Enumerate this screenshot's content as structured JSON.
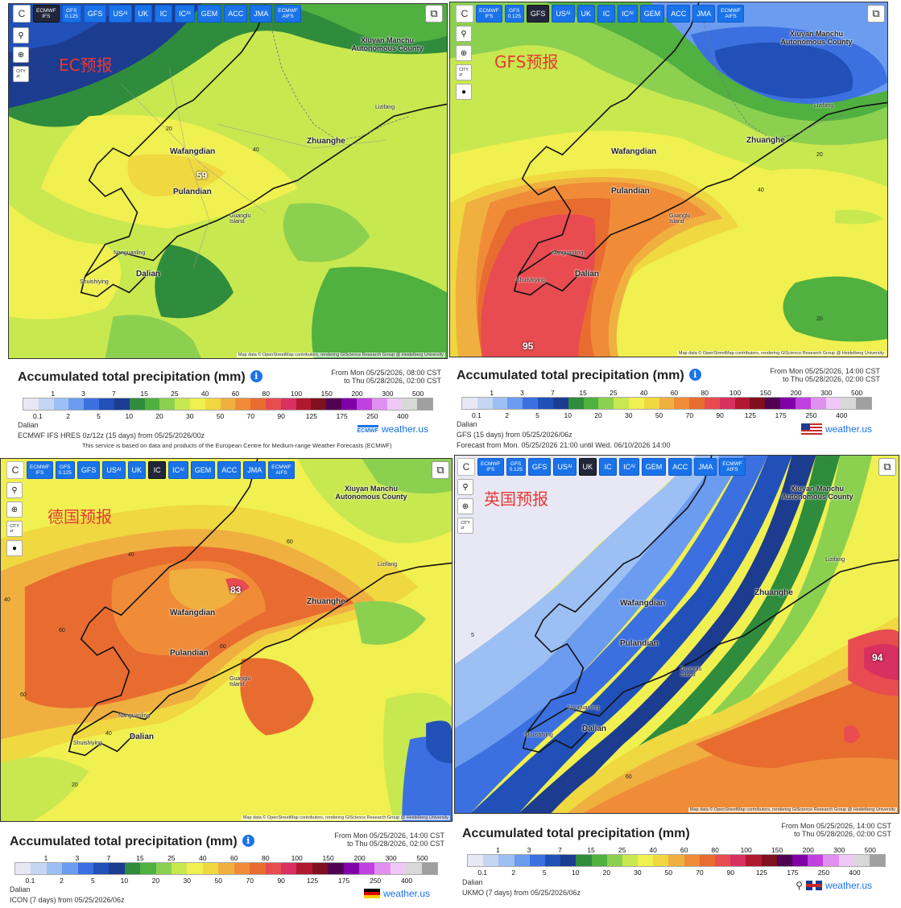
{
  "toolbar": {
    "refresh_label": "C",
    "models": [
      "ECMWF IFS",
      "GFS 0.125",
      "GFS",
      "USAI",
      "UK",
      "IC",
      "ICAI",
      "GEM",
      "ACC",
      "JMA",
      "ECMWF AIFS"
    ]
  },
  "side_tools": {
    "locate": "⚲",
    "zoom": "⊕",
    "city": "CITY"
  },
  "panels": [
    {
      "id": "ec",
      "overlay_title": "EC预报",
      "active_model": "ECMWF IFS",
      "max_label": "59",
      "legend_title": "Accumulated total precipitation (mm)",
      "date_range_line1": "From Mon 05/25/2026, 08:00 CST",
      "date_range_line2": "to Thu 05/28/2026, 02:00 CST",
      "location": "Dalian",
      "model_line": "ECMWF IFS HRES 0z/12z (15 days) from 05/25/2026/00z",
      "extra_line": "This service is based on data and products of the European Centre for Medium-range Weather Forecasts (ECMWF)",
      "brand": "weather.us"
    },
    {
      "id": "gfs",
      "overlay_title": "GFS预报",
      "active_model": "GFS",
      "max_label": "95",
      "legend_title": "Accumulated total precipitation (mm)",
      "date_range_line1": "From Mon 05/25/2026, 14:00 CST",
      "date_range_line2": "to Thu 05/28/2026, 02:00 CST",
      "location": "Dalian",
      "model_line": "GFS (15 days) from 05/25/2026/06z",
      "extra_line": "Forecast from Mon. 05/25/2026 21:00 until Wed. 06/10/2026 14:00",
      "brand": "weather.us"
    },
    {
      "id": "icon",
      "overlay_title": "德国预报",
      "active_model": "IC",
      "max_label": "83",
      "legend_title": "Accumulated total precipitation (mm)",
      "date_range_line1": "From Mon 05/25/2026, 14:00 CST",
      "date_range_line2": "to Thu 05/28/2026, 02:00 CST",
      "location": "Dalian",
      "model_line": "ICON (7 days) from 05/25/2026/06z",
      "extra_line": "",
      "brand": "weather.us"
    },
    {
      "id": "uk",
      "overlay_title": "英国预报",
      "active_model": "UK",
      "max_label": "94",
      "legend_title": "Accumulated total precipitation (mm)",
      "date_range_line1": "From Mon 05/25/2026, 14:00 CST",
      "date_range_line2": "to Thu 05/28/2026, 02:00 CST",
      "location": "Dalian",
      "model_line": "UKMO (7 days) from 05/25/2026/06z",
      "extra_line": "",
      "brand": "weather.us"
    }
  ],
  "places": {
    "xiuyan": "Xiuyan Manchu Autonomous County",
    "wafangdian": "Wafangdian",
    "pulandian": "Pulandian",
    "zhuanghe": "Zhuanghe",
    "dalian": "Dalian",
    "nanguanling": "Nanguanling",
    "shuishiying": "Shuishiying",
    "guanglu": "Guanglu Island",
    "lizifang": "Lizifang"
  },
  "attribution": "Map data © OpenStreetMap contributors, rendering GIScience Research Group @ Heidelberg University",
  "legend_scale": {
    "top_ticks": [
      "1",
      "3",
      "7",
      "15",
      "25",
      "40",
      "60",
      "80",
      "100",
      "150",
      "200",
      "300",
      "500"
    ],
    "bottom_ticks": [
      "0.1",
      "2",
      "5",
      "10",
      "20",
      "30",
      "50",
      "70",
      "90",
      "125",
      "175",
      "250",
      "400"
    ],
    "colors": [
      "#e8e8f4",
      "#c4d6f4",
      "#9cc0f4",
      "#6c9cf0",
      "#3c70e0",
      "#2050b8",
      "#1c3c90",
      "#2e8c3c",
      "#50b040",
      "#8cd050",
      "#c8e850",
      "#f0f050",
      "#f0d840",
      "#f0b040",
      "#f08c38",
      "#e86c30",
      "#e84c50",
      "#d83060",
      "#b01830",
      "#801020",
      "#500050",
      "#8000a8",
      "#c040e0",
      "#e090f0",
      "#f0c8f8",
      "#d8d8d8",
      "#a0a0a0"
    ]
  }
}
